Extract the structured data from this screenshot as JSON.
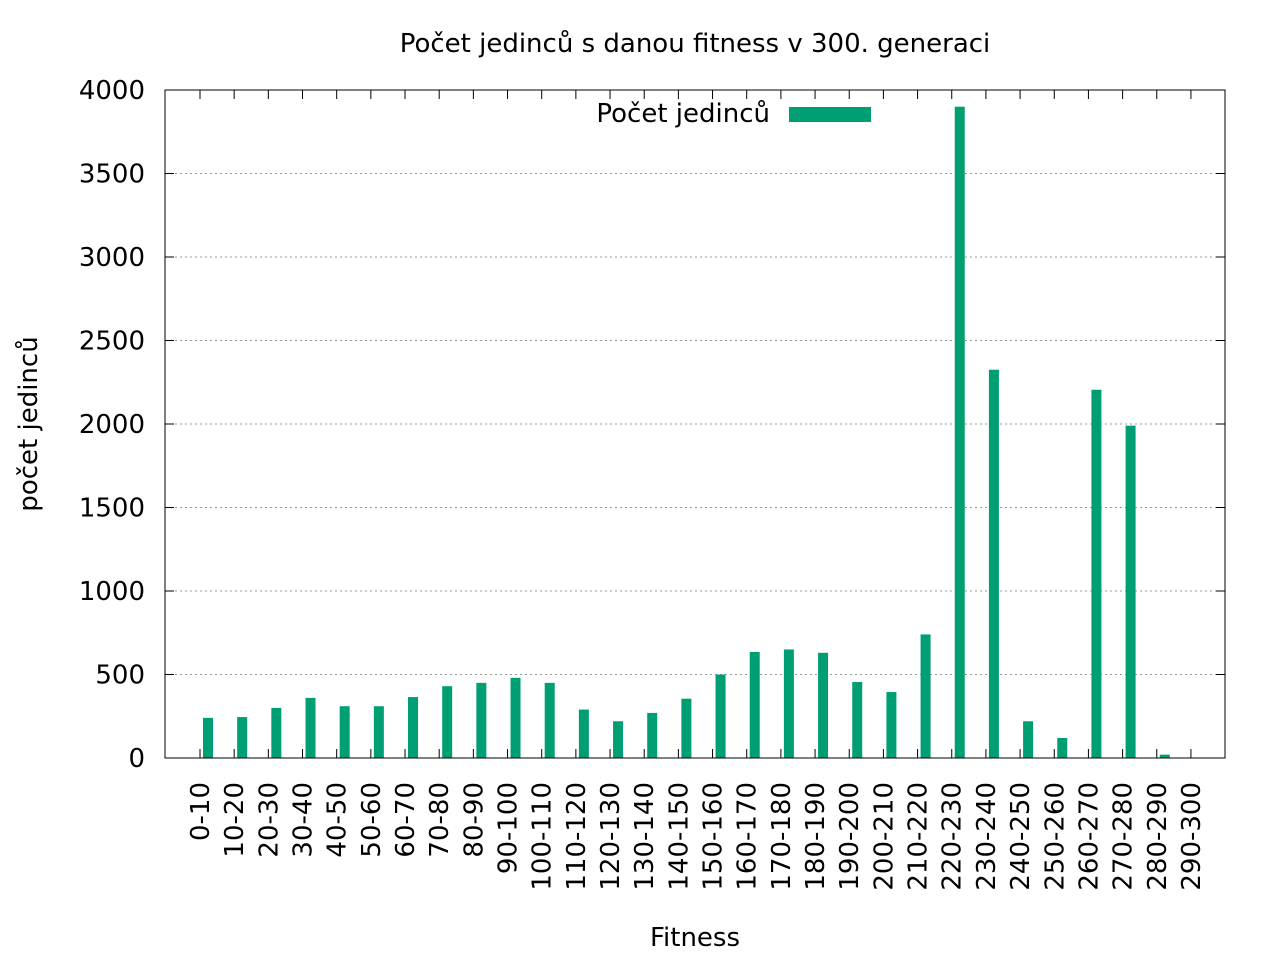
{
  "chart_data": {
    "type": "bar",
    "title": "Počet jedinců s danou fitness v 300. generaci",
    "xlabel": "Fitness",
    "ylabel": "počet jedinců",
    "ylim": [
      0,
      4000
    ],
    "yticks": [
      0,
      500,
      1000,
      1500,
      2000,
      2500,
      3000,
      3500,
      4000
    ],
    "grid": true,
    "legend_position": "top-center",
    "categories": [
      "0-10",
      "10-20",
      "20-30",
      "30-40",
      "40-50",
      "50-60",
      "60-70",
      "70-80",
      "80-90",
      "90-100",
      "100-110",
      "110-120",
      "120-130",
      "130-140",
      "140-150",
      "150-160",
      "160-170",
      "170-180",
      "180-190",
      "190-200",
      "200-210",
      "210-220",
      "220-230",
      "230-240",
      "240-250",
      "250-260",
      "260-270",
      "270-280",
      "280-290",
      "290-300"
    ],
    "series": [
      {
        "name": "Počet jedinců",
        "color": "#009e73",
        "values": [
          240,
          245,
          300,
          360,
          310,
          310,
          365,
          430,
          450,
          480,
          450,
          290,
          220,
          270,
          355,
          500,
          635,
          650,
          630,
          455,
          395,
          740,
          3900,
          2325,
          220,
          120,
          2205,
          1990,
          20,
          0
        ]
      }
    ]
  }
}
